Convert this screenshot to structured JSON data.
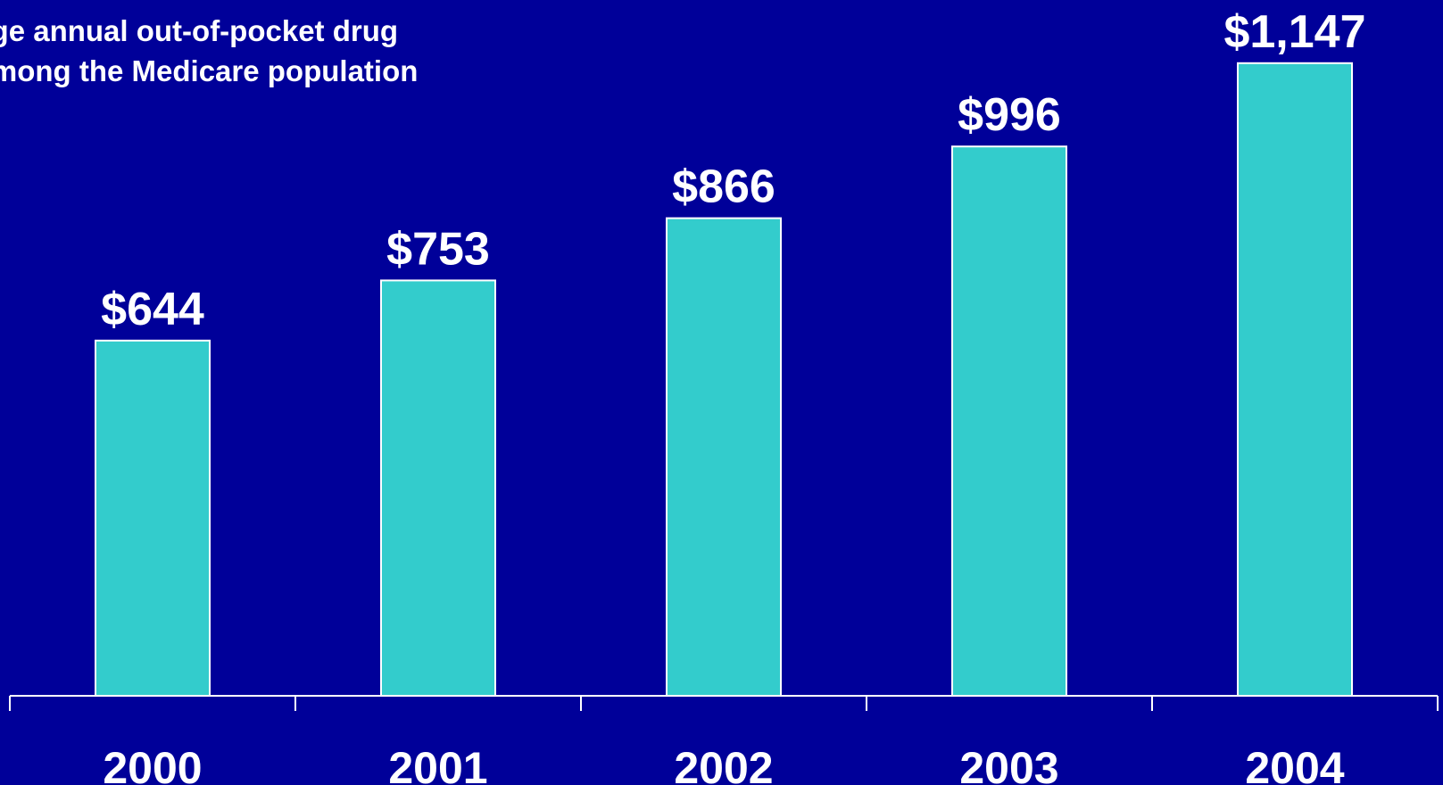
{
  "chart_data": {
    "type": "bar",
    "title": "Average annual out-of-pocket drug costs among the Medicare population",
    "title_visible_lines": [
      "erage annual out-of-pocket drug",
      "s among the Medicare population"
    ],
    "categories": [
      "2000",
      "2001",
      "2002",
      "2003",
      "2004"
    ],
    "values": [
      644,
      753,
      866,
      996,
      1147
    ],
    "value_labels": [
      "$644",
      "$753",
      "$866",
      "$996",
      "$1,147"
    ],
    "xlabel": "",
    "ylabel": "",
    "ylim": [
      0,
      1200
    ],
    "grid": false,
    "legend": "none",
    "colors": {
      "background": "#000099",
      "bar": "#33cccc",
      "bar_outline": "#ffffff",
      "text": "#ffffff",
      "axis": "#ffffff"
    }
  }
}
